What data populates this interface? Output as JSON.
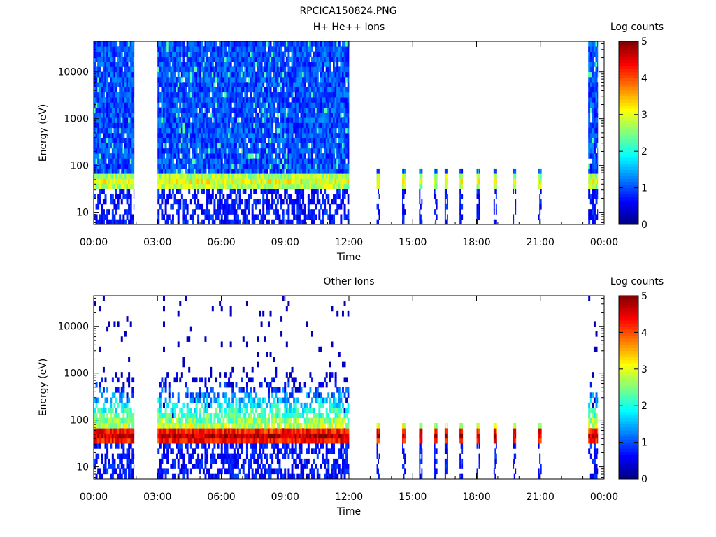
{
  "figure_title": "RPCICA150824.PNG",
  "chart_data": [
    {
      "type": "heatmap",
      "title": "H+ He++ Ions",
      "xlabel": "Time",
      "ylabel": "Energy (eV)",
      "colorbar_label": "Log counts",
      "x_ticks": [
        "00:00",
        "03:00",
        "06:00",
        "09:00",
        "12:00",
        "15:00",
        "18:00",
        "21:00",
        "00:00"
      ],
      "x_range_hours": [
        0,
        24
      ],
      "y_scale": "log",
      "y_range_ev": [
        5.5,
        45000
      ],
      "y_ticks": [
        "10",
        "100",
        "1000",
        "10000"
      ],
      "y_tick_values": [
        10,
        100,
        1000,
        10000
      ],
      "colorbar_ticks": [
        "0",
        "1",
        "2",
        "3",
        "4",
        "5"
      ],
      "colorbar_range": [
        0,
        5
      ],
      "colormap": [
        "#00007f",
        "#0000ff",
        "#007fff",
        "#00ffff",
        "#7fff7f",
        "#ffff00",
        "#ff7f00",
        "#ff0000",
        "#7f0000"
      ],
      "data_intervals_hours": [
        [
          0.0,
          1.9
        ],
        [
          3.0,
          12.0
        ],
        [
          23.25,
          23.7
        ]
      ],
      "sparse_sweeps_hours": [
        13.3,
        14.5,
        15.3,
        16.0,
        16.5,
        17.2,
        18.0,
        18.8,
        19.7,
        20.9
      ],
      "band": {
        "energy_ev": [
          28,
          75
        ],
        "log_counts_peak": 3.0
      },
      "background_log_counts": 0.6,
      "low_energy_log_counts": 0.4
    },
    {
      "type": "heatmap",
      "title": "Other Ions",
      "xlabel": "Time",
      "ylabel": "Energy (eV)",
      "colorbar_label": "Log counts",
      "x_ticks": [
        "00:00",
        "03:00",
        "06:00",
        "09:00",
        "12:00",
        "15:00",
        "18:00",
        "21:00",
        "00:00"
      ],
      "x_range_hours": [
        0,
        24
      ],
      "y_scale": "log",
      "y_range_ev": [
        5.5,
        45000
      ],
      "y_ticks": [
        "10",
        "100",
        "1000",
        "10000"
      ],
      "y_tick_values": [
        10,
        100,
        1000,
        10000
      ],
      "colorbar_ticks": [
        "0",
        "1",
        "2",
        "3",
        "4",
        "5"
      ],
      "colorbar_range": [
        0,
        5
      ],
      "colormap": [
        "#00007f",
        "#0000ff",
        "#007fff",
        "#00ffff",
        "#7fff7f",
        "#ffff00",
        "#ff7f00",
        "#ff0000",
        "#7f0000"
      ],
      "data_intervals_hours": [
        [
          0.0,
          1.9
        ],
        [
          3.0,
          12.0
        ],
        [
          23.25,
          23.7
        ]
      ],
      "sparse_sweeps_hours": [
        13.3,
        14.5,
        15.3,
        16.0,
        16.5,
        17.2,
        18.0,
        18.8,
        19.7,
        20.9
      ],
      "band": {
        "energy_ev": [
          28,
          75
        ],
        "log_counts_peak": 4.7
      },
      "background_log_counts": 0.2,
      "low_energy_log_counts": 0.4
    }
  ]
}
